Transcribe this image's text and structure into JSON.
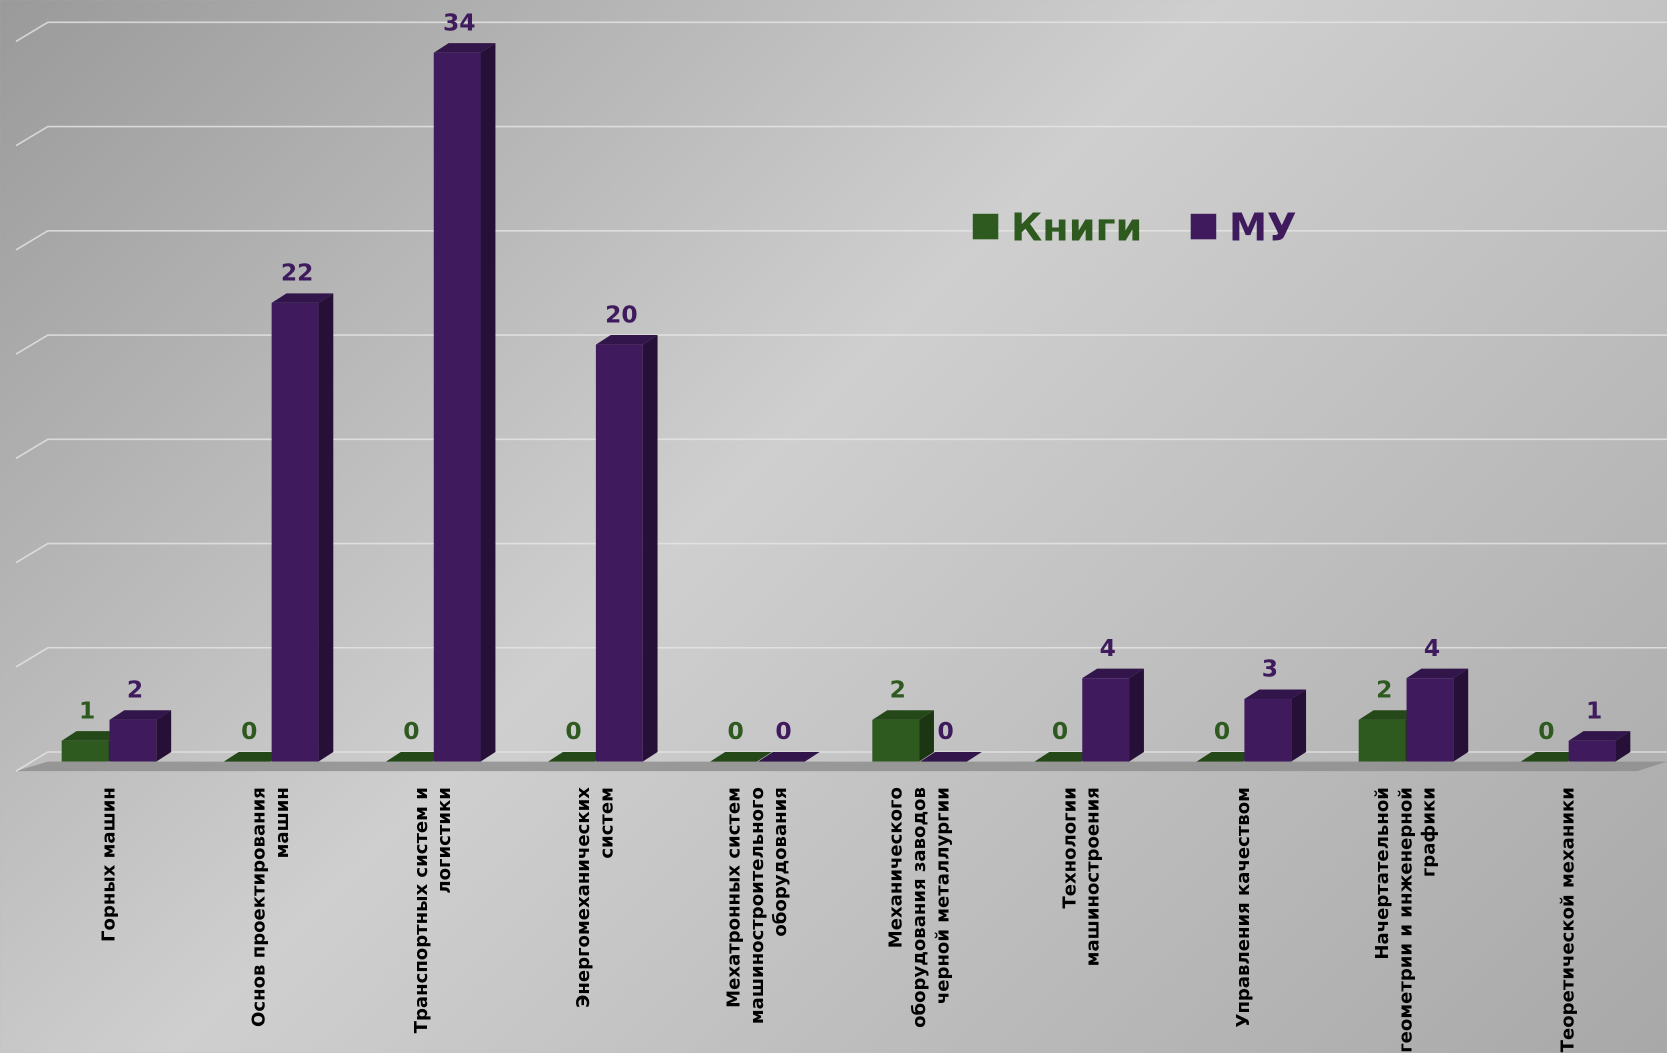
{
  "chart_data": {
    "type": "bar3d",
    "categories": [
      "Горных машин",
      "Основ проектирования машин",
      "Транспортных систем и логистики",
      "Энергомеханических систем",
      "Мехатронных систем машиностроительного оборудования",
      "Механического оборудования заводов черной металлургии",
      "Технологии машиностроения",
      "Управления качеством",
      "Начертательной геометрии и инженерной графики",
      "Теоретической механики"
    ],
    "series": [
      {
        "name": "Книги",
        "color": "#2e5a1f",
        "values": [
          1,
          0,
          0,
          0,
          0,
          2,
          0,
          0,
          2,
          0
        ]
      },
      {
        "name": "МУ",
        "color": "#3f1b5e",
        "values": [
          2,
          22,
          34,
          20,
          0,
          0,
          4,
          3,
          4,
          1
        ]
      }
    ],
    "ylim": [
      0,
      35
    ],
    "yticks": [
      0,
      5,
      10,
      15,
      20,
      25,
      30,
      35
    ],
    "grid": true,
    "legend": "top-right"
  }
}
